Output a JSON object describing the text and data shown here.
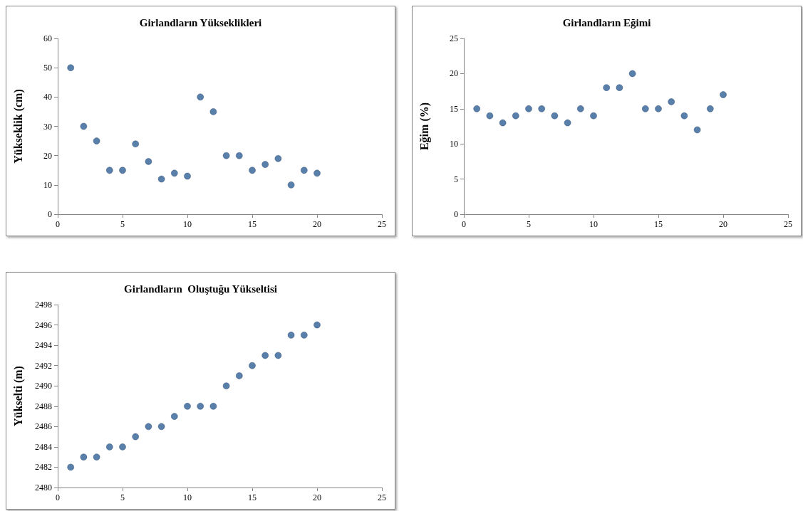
{
  "chart_data": [
    {
      "type": "scatter",
      "title": "Girlandların Yükseklikleri",
      "ylabel": "Yükseklik (cm)",
      "x": [
        1,
        2,
        3,
        4,
        5,
        6,
        7,
        8,
        9,
        10,
        11,
        12,
        13,
        14,
        15,
        16,
        17,
        18,
        19,
        20
      ],
      "series": [
        {
          "color": "#2f5f96",
          "values": [
            50,
            30,
            25,
            15,
            15,
            24,
            18,
            12,
            14,
            13,
            40,
            35,
            20,
            20,
            15,
            17,
            19,
            10,
            15,
            14
          ]
        }
      ],
      "xlim": [
        0,
        25
      ],
      "xticks": [
        0,
        5,
        10,
        15,
        20,
        25
      ],
      "ylim": [
        0,
        60
      ],
      "yticks": [
        0,
        10,
        20,
        30,
        40,
        50,
        60
      ],
      "grid": false,
      "marker": "circle"
    },
    {
      "type": "scatter",
      "title": "Girlandların Eğimi",
      "ylabel": "Eğim (%)",
      "x": [
        1,
        2,
        3,
        4,
        5,
        6,
        7,
        8,
        9,
        10,
        11,
        12,
        13,
        14,
        15,
        16,
        17,
        18,
        19,
        20
      ],
      "series": [
        {
          "color": "#2f5f96",
          "values": [
            15,
            14,
            13,
            14,
            15,
            15,
            14,
            13,
            15,
            14,
            18,
            18,
            20,
            15,
            15,
            16,
            14,
            12,
            15,
            17
          ]
        }
      ],
      "xlim": [
        0,
        25
      ],
      "xticks": [
        0,
        5,
        10,
        15,
        20,
        25
      ],
      "ylim": [
        0,
        25
      ],
      "yticks": [
        0,
        5,
        10,
        15,
        20,
        25
      ],
      "grid": false,
      "marker": "circle"
    },
    {
      "type": "scatter",
      "title": "Girlandların  Oluştuğu Yükseltisi",
      "ylabel": "Yükselti (m)",
      "x": [
        1,
        2,
        3,
        4,
        5,
        6,
        7,
        8,
        9,
        10,
        11,
        12,
        13,
        14,
        15,
        16,
        17,
        18,
        19,
        20
      ],
      "series": [
        {
          "color": "#2f5f96",
          "values": [
            2482,
            2483,
            2483,
            2484,
            2484,
            2485,
            2486,
            2486,
            2487,
            2488,
            2488,
            2488,
            2490,
            2491,
            2492,
            2493,
            2493,
            2495,
            2495,
            2496
          ]
        }
      ],
      "xlim": [
        0,
        25
      ],
      "xticks": [
        0,
        5,
        10,
        15,
        20,
        25
      ],
      "ylim": [
        2480,
        2498
      ],
      "yticks": [
        2480,
        2482,
        2484,
        2486,
        2488,
        2490,
        2492,
        2494,
        2496,
        2498
      ],
      "grid": false,
      "marker": "circle"
    }
  ]
}
